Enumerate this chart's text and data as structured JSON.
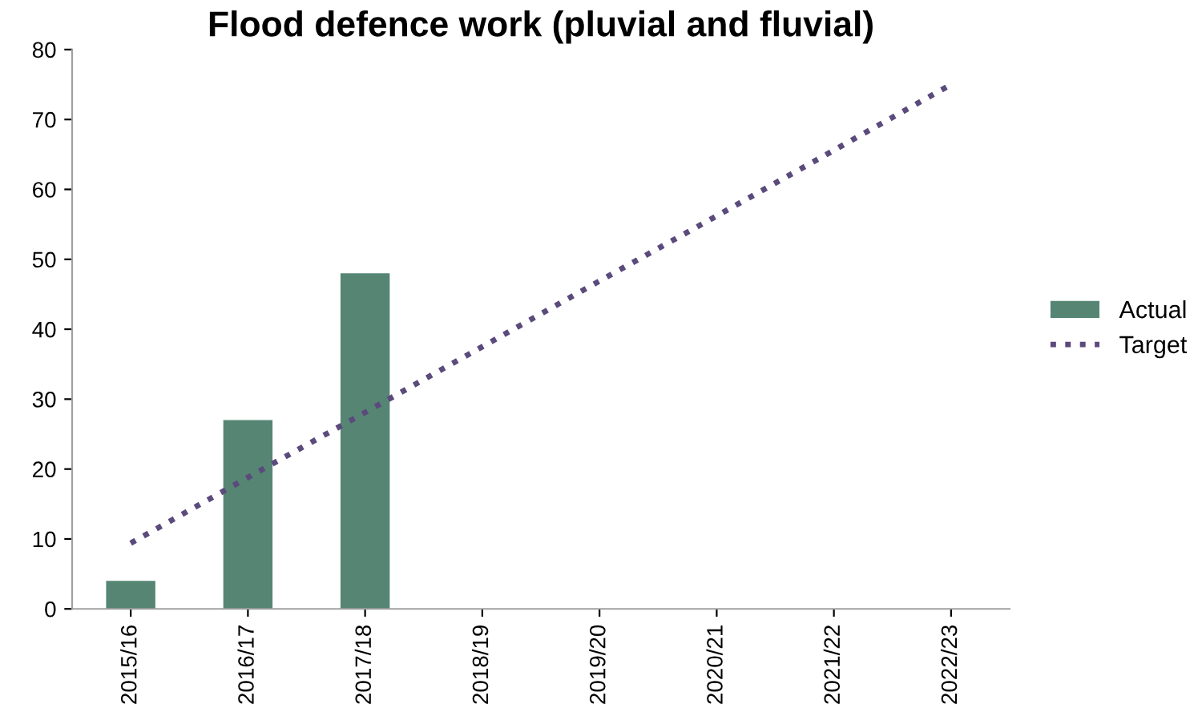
{
  "chart_data": {
    "type": "bar",
    "title": "Flood defence work (pluvial and fluvial)",
    "categories": [
      "2015/16",
      "2016/17",
      "2017/18",
      "2018/19",
      "2019/20",
      "2020/21",
      "2021/22",
      "2022/23"
    ],
    "series": [
      {
        "name": "Actual",
        "color": "#568574",
        "values": [
          4,
          27,
          48,
          null,
          null,
          null,
          null,
          null
        ]
      },
      {
        "name": "Target",
        "type": "line",
        "color": "#5b4a7c",
        "line_style": "dotted",
        "values": [
          9.4,
          18.8,
          28.1,
          37.5,
          46.9,
          56.2,
          65.6,
          75
        ]
      }
    ],
    "ylim": [
      0,
      80
    ],
    "yticks": [
      0,
      10,
      20,
      30,
      40,
      50,
      60,
      70,
      80
    ],
    "grid": false,
    "legend": "right"
  }
}
